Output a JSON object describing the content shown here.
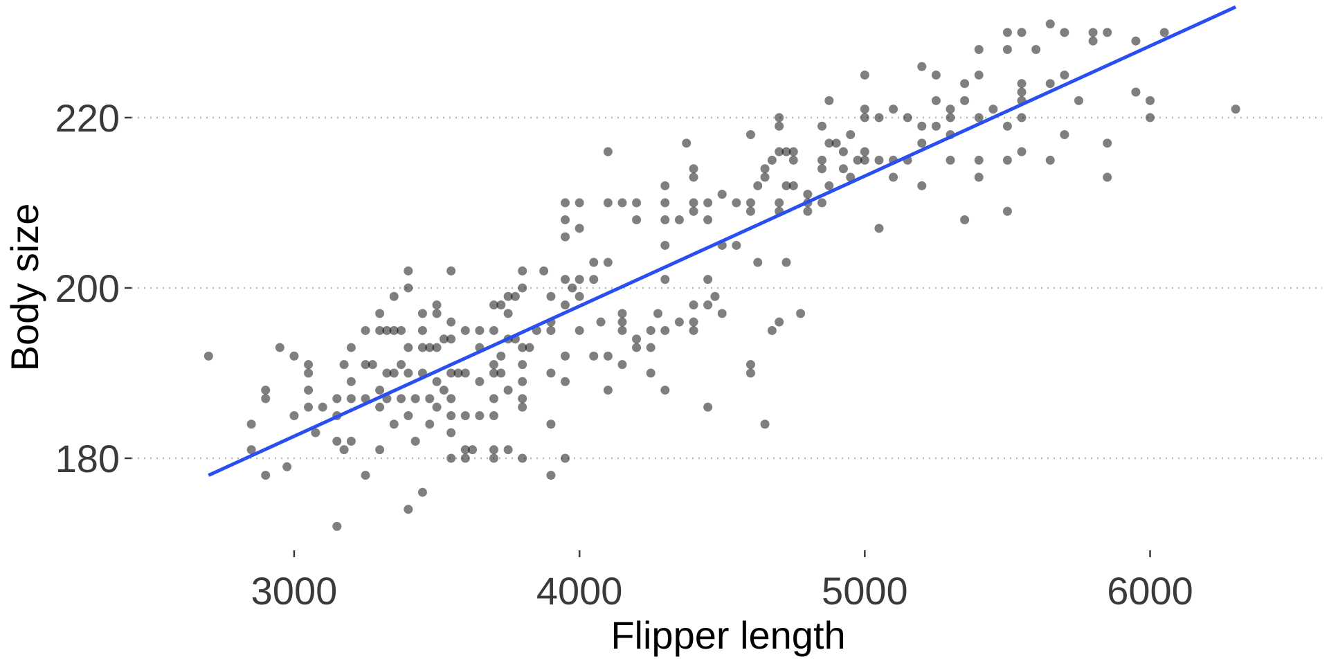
{
  "chart_data": {
    "type": "scatter",
    "title": "",
    "xlabel": "Flipper length",
    "ylabel": "Body size",
    "xlim": [
      2430,
      6530
    ],
    "ylim": [
      170,
      233
    ],
    "x_ticks": [
      3000,
      4000,
      5000,
      6000
    ],
    "y_ticks": [
      180,
      200,
      220
    ],
    "grid": "horizontal dotted at y ticks",
    "legend": "none",
    "colors": {
      "points": "#000000",
      "trend_line": "#2A4FF0",
      "grid": "#B8B8B8",
      "tick_text": "#3A3A3A"
    },
    "trend_line": {
      "x": [
        2700,
        6300
      ],
      "y": [
        178,
        233
      ]
    },
    "points": [
      [
        2700,
        192
      ],
      [
        2850,
        184
      ],
      [
        2850,
        181
      ],
      [
        2900,
        188
      ],
      [
        2900,
        187
      ],
      [
        2900,
        178
      ],
      [
        2950,
        193
      ],
      [
        2975,
        179
      ],
      [
        3000,
        185
      ],
      [
        3000,
        192
      ],
      [
        3050,
        191
      ],
      [
        3050,
        190
      ],
      [
        3050,
        188
      ],
      [
        3050,
        186
      ],
      [
        3075,
        183
      ],
      [
        3100,
        186
      ],
      [
        3150,
        187
      ],
      [
        3150,
        185
      ],
      [
        3150,
        182
      ],
      [
        3150,
        172
      ],
      [
        3175,
        191
      ],
      [
        3175,
        181
      ],
      [
        3200,
        193
      ],
      [
        3200,
        189
      ],
      [
        3200,
        187
      ],
      [
        3200,
        182
      ],
      [
        3250,
        195
      ],
      [
        3250,
        191
      ],
      [
        3250,
        187
      ],
      [
        3250,
        178
      ],
      [
        3275,
        191
      ],
      [
        3300,
        197
      ],
      [
        3300,
        195
      ],
      [
        3300,
        188
      ],
      [
        3300,
        186
      ],
      [
        3300,
        181
      ],
      [
        3325,
        195
      ],
      [
        3325,
        190
      ],
      [
        3325,
        187
      ],
      [
        3350,
        199
      ],
      [
        3350,
        195
      ],
      [
        3350,
        190
      ],
      [
        3350,
        184
      ],
      [
        3375,
        195
      ],
      [
        3375,
        191
      ],
      [
        3375,
        187
      ],
      [
        3400,
        202
      ],
      [
        3400,
        200
      ],
      [
        3400,
        193
      ],
      [
        3400,
        190
      ],
      [
        3400,
        185
      ],
      [
        3400,
        174
      ],
      [
        3425,
        187
      ],
      [
        3425,
        182
      ],
      [
        3450,
        197
      ],
      [
        3450,
        195
      ],
      [
        3450,
        193
      ],
      [
        3450,
        190
      ],
      [
        3450,
        176
      ],
      [
        3475,
        193
      ],
      [
        3475,
        187
      ],
      [
        3475,
        184
      ],
      [
        3500,
        198
      ],
      [
        3500,
        197
      ],
      [
        3500,
        193
      ],
      [
        3500,
        189
      ],
      [
        3500,
        186
      ],
      [
        3525,
        194
      ],
      [
        3525,
        188
      ],
      [
        3550,
        202
      ],
      [
        3550,
        196
      ],
      [
        3550,
        194
      ],
      [
        3550,
        190
      ],
      [
        3550,
        187
      ],
      [
        3550,
        185
      ],
      [
        3550,
        183
      ],
      [
        3550,
        180
      ],
      [
        3575,
        190
      ],
      [
        3600,
        195
      ],
      [
        3600,
        190
      ],
      [
        3600,
        185
      ],
      [
        3600,
        181
      ],
      [
        3600,
        180
      ],
      [
        3625,
        181
      ],
      [
        3650,
        195
      ],
      [
        3650,
        193
      ],
      [
        3650,
        189
      ],
      [
        3650,
        185
      ],
      [
        3700,
        198
      ],
      [
        3700,
        195
      ],
      [
        3700,
        191
      ],
      [
        3700,
        190
      ],
      [
        3700,
        187
      ],
      [
        3700,
        185
      ],
      [
        3700,
        181
      ],
      [
        3700,
        180
      ],
      [
        3725,
        198
      ],
      [
        3725,
        192
      ],
      [
        3725,
        190
      ],
      [
        3750,
        199
      ],
      [
        3750,
        197
      ],
      [
        3750,
        194
      ],
      [
        3750,
        188
      ],
      [
        3750,
        181
      ],
      [
        3775,
        199
      ],
      [
        3775,
        194
      ],
      [
        3800,
        202
      ],
      [
        3800,
        200
      ],
      [
        3800,
        193
      ],
      [
        3800,
        191
      ],
      [
        3800,
        189
      ],
      [
        3800,
        187
      ],
      [
        3800,
        186
      ],
      [
        3800,
        180
      ],
      [
        3825,
        193
      ],
      [
        3850,
        195
      ],
      [
        3875,
        202
      ],
      [
        3900,
        199
      ],
      [
        3900,
        196
      ],
      [
        3900,
        195
      ],
      [
        3900,
        190
      ],
      [
        3900,
        184
      ],
      [
        3900,
        178
      ],
      [
        3950,
        210
      ],
      [
        3950,
        208
      ],
      [
        3950,
        206
      ],
      [
        3950,
        201
      ],
      [
        3950,
        198
      ],
      [
        3950,
        192
      ],
      [
        3950,
        189
      ],
      [
        3950,
        180
      ],
      [
        3975,
        200
      ],
      [
        4000,
        210
      ],
      [
        4000,
        207
      ],
      [
        4000,
        201
      ],
      [
        4000,
        199
      ],
      [
        4000,
        195
      ],
      [
        4050,
        203
      ],
      [
        4050,
        201
      ],
      [
        4050,
        192
      ],
      [
        4075,
        196
      ],
      [
        4100,
        216
      ],
      [
        4100,
        210
      ],
      [
        4100,
        203
      ],
      [
        4100,
        192
      ],
      [
        4100,
        188
      ],
      [
        4150,
        210
      ],
      [
        4150,
        197
      ],
      [
        4150,
        196
      ],
      [
        4150,
        195
      ],
      [
        4150,
        191
      ],
      [
        4200,
        210
      ],
      [
        4200,
        208
      ],
      [
        4200,
        194
      ],
      [
        4200,
        193
      ],
      [
        4250,
        195
      ],
      [
        4250,
        193
      ],
      [
        4250,
        190
      ],
      [
        4275,
        197
      ],
      [
        4300,
        212
      ],
      [
        4300,
        210
      ],
      [
        4300,
        208
      ],
      [
        4300,
        205
      ],
      [
        4300,
        201
      ],
      [
        4300,
        195
      ],
      [
        4300,
        188
      ],
      [
        4350,
        208
      ],
      [
        4350,
        196
      ],
      [
        4375,
        217
      ],
      [
        4400,
        214
      ],
      [
        4400,
        213
      ],
      [
        4400,
        210
      ],
      [
        4400,
        209
      ],
      [
        4400,
        198
      ],
      [
        4400,
        196
      ],
      [
        4400,
        195
      ],
      [
        4450,
        210
      ],
      [
        4450,
        208
      ],
      [
        4450,
        201
      ],
      [
        4450,
        198
      ],
      [
        4450,
        186
      ],
      [
        4475,
        199
      ],
      [
        4500,
        211
      ],
      [
        4500,
        205
      ],
      [
        4500,
        197
      ],
      [
        4550,
        210
      ],
      [
        4550,
        205
      ],
      [
        4600,
        218
      ],
      [
        4600,
        210
      ],
      [
        4600,
        209
      ],
      [
        4600,
        191
      ],
      [
        4600,
        190
      ],
      [
        4625,
        212
      ],
      [
        4625,
        203
      ],
      [
        4650,
        214
      ],
      [
        4650,
        213
      ],
      [
        4650,
        184
      ],
      [
        4675,
        215
      ],
      [
        4675,
        195
      ],
      [
        4700,
        220
      ],
      [
        4700,
        219
      ],
      [
        4700,
        216
      ],
      [
        4700,
        210
      ],
      [
        4700,
        209
      ],
      [
        4700,
        196
      ],
      [
        4725,
        216
      ],
      [
        4725,
        212
      ],
      [
        4725,
        203
      ],
      [
        4750,
        216
      ],
      [
        4750,
        215
      ],
      [
        4750,
        212
      ],
      [
        4775,
        197
      ],
      [
        4800,
        211
      ],
      [
        4800,
        210
      ],
      [
        4800,
        209
      ],
      [
        4850,
        219
      ],
      [
        4850,
        215
      ],
      [
        4850,
        214
      ],
      [
        4850,
        210
      ],
      [
        4875,
        222
      ],
      [
        4875,
        217
      ],
      [
        4875,
        212
      ],
      [
        4900,
        217
      ],
      [
        4925,
        216
      ],
      [
        4925,
        214
      ],
      [
        4950,
        218
      ],
      [
        4950,
        213
      ],
      [
        4975,
        215
      ],
      [
        5000,
        225
      ],
      [
        5000,
        221
      ],
      [
        5000,
        220
      ],
      [
        5000,
        216
      ],
      [
        5000,
        215
      ],
      [
        5050,
        220
      ],
      [
        5050,
        215
      ],
      [
        5050,
        207
      ],
      [
        5100,
        221
      ],
      [
        5100,
        215
      ],
      [
        5100,
        213
      ],
      [
        5150,
        220
      ],
      [
        5150,
        215
      ],
      [
        5200,
        226
      ],
      [
        5200,
        219
      ],
      [
        5200,
        217
      ],
      [
        5200,
        212
      ],
      [
        5250,
        225
      ],
      [
        5250,
        222
      ],
      [
        5250,
        219
      ],
      [
        5300,
        221
      ],
      [
        5300,
        220
      ],
      [
        5300,
        218
      ],
      [
        5300,
        215
      ],
      [
        5350,
        224
      ],
      [
        5350,
        222
      ],
      [
        5350,
        208
      ],
      [
        5400,
        228
      ],
      [
        5400,
        225
      ],
      [
        5400,
        220
      ],
      [
        5400,
        215
      ],
      [
        5400,
        213
      ],
      [
        5450,
        221
      ],
      [
        5500,
        230
      ],
      [
        5500,
        228
      ],
      [
        5500,
        219
      ],
      [
        5500,
        215
      ],
      [
        5500,
        209
      ],
      [
        5550,
        230
      ],
      [
        5550,
        224
      ],
      [
        5550,
        223
      ],
      [
        5550,
        222
      ],
      [
        5550,
        220
      ],
      [
        5550,
        216
      ],
      [
        5600,
        228
      ],
      [
        5650,
        231
      ],
      [
        5650,
        224
      ],
      [
        5650,
        215
      ],
      [
        5700,
        230
      ],
      [
        5700,
        225
      ],
      [
        5700,
        218
      ],
      [
        5750,
        222
      ],
      [
        5800,
        230
      ],
      [
        5800,
        229
      ],
      [
        5850,
        230
      ],
      [
        5850,
        217
      ],
      [
        5850,
        213
      ],
      [
        5950,
        229
      ],
      [
        5950,
        223
      ],
      [
        6000,
        222
      ],
      [
        6000,
        220
      ],
      [
        6050,
        230
      ],
      [
        6300,
        221
      ]
    ]
  }
}
